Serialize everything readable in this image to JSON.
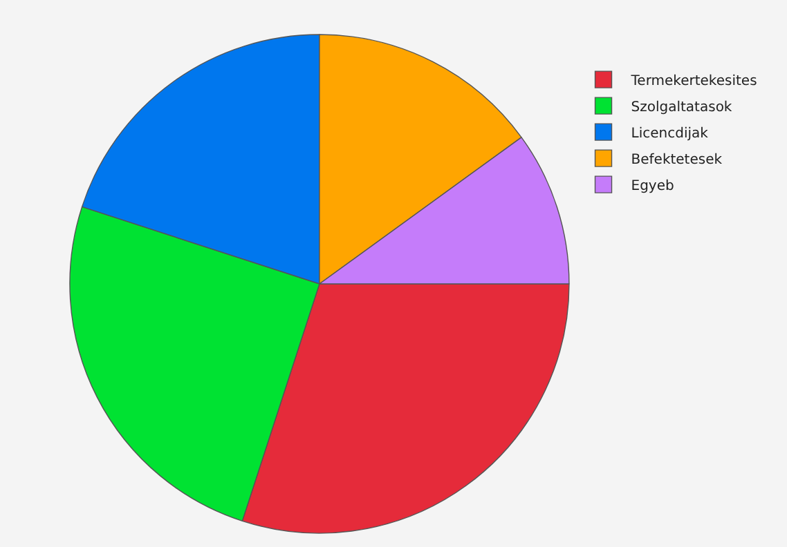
{
  "chart_data": {
    "type": "pie",
    "categories": [
      "Termekertekesites",
      "Szolgaltatasok",
      "Licencdijak",
      "Befektetesek",
      "Egyeb"
    ],
    "values": [
      30,
      25,
      20,
      15,
      10
    ],
    "colors": [
      "#e52b3a",
      "#00e232",
      "#0077ee",
      "#ffa500",
      "#c57cfa"
    ],
    "legend": "top right"
  }
}
